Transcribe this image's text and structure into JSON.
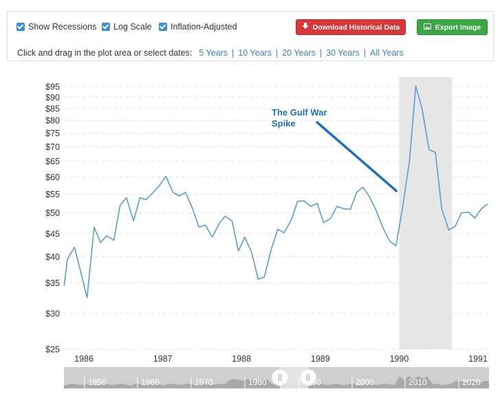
{
  "toolbar": {
    "checkboxes": [
      {
        "label": "Show Recessions",
        "checked": true
      },
      {
        "label": "Log Scale",
        "checked": true
      },
      {
        "label": "Inflation-Adjusted",
        "checked": true
      }
    ],
    "download_label": "Download Historical Data",
    "export_label": "Export Image",
    "zoom_prompt": "Click and drag in the plot area or select dates:",
    "zoom_options": [
      "5 Years",
      "10 Years",
      "20 Years",
      "30 Years",
      "All Years"
    ]
  },
  "colors": {
    "line": "#5b9bd5",
    "recession": "#e6e6e6",
    "annotation": "#1f6fbf",
    "download": "#d9383a",
    "export": "#3aa845",
    "accent": "#3e8ed0"
  },
  "chart_data": {
    "type": "line",
    "log_scale": true,
    "grid": true,
    "y_ticks": [
      25,
      30,
      35,
      40,
      45,
      50,
      55,
      60,
      65,
      70,
      75,
      80,
      85,
      90,
      95
    ],
    "y_tick_labels": [
      "$25",
      "$30",
      "$35",
      "$40",
      "$45",
      "$50",
      "$55",
      "$60",
      "$65",
      "$70",
      "$75",
      "$80",
      "$85",
      "$90",
      "$95"
    ],
    "x_ticks": [
      1986,
      1987,
      1988,
      1989,
      1990,
      1991
    ],
    "x_tick_labels": [
      "1986",
      "1987",
      "1988",
      "1989",
      "1990",
      "1991"
    ],
    "xlim": [
      1985.75,
      1991.12
    ],
    "ylim": [
      25,
      100
    ],
    "recession": {
      "start": 1990.0,
      "end": 1990.67
    },
    "annotation": {
      "lines": [
        "The Gulf War",
        "Spike"
      ],
      "target_x": 1990.0,
      "target_y": 56.5
    },
    "series": [
      {
        "x": [
          1985.75,
          1985.79,
          1985.88,
          1985.96,
          1986.04,
          1986.13,
          1986.21,
          1986.29,
          1986.38,
          1986.46,
          1986.54,
          1986.63,
          1986.71,
          1986.79,
          1986.88,
          1986.96,
          1987.04,
          1987.13,
          1987.21,
          1987.29,
          1987.38,
          1987.46,
          1987.54,
          1987.63,
          1987.71,
          1987.79,
          1987.88,
          1987.96,
          1988.04,
          1988.13,
          1988.21,
          1988.29,
          1988.38,
          1988.46,
          1988.54,
          1988.63,
          1988.71,
          1988.79,
          1988.88,
          1988.96,
          1989.04,
          1989.13,
          1989.21,
          1989.29,
          1989.38,
          1989.46,
          1989.54,
          1989.63,
          1989.71,
          1989.79,
          1989.88,
          1989.96,
          1990.04,
          1990.13,
          1990.21,
          1990.29,
          1990.38,
          1990.46,
          1990.54,
          1990.63,
          1990.71,
          1990.79,
          1990.88,
          1990.96,
          1991.04,
          1991.12
        ],
        "values": [
          34.5,
          39.5,
          42.0,
          37.0,
          32.5,
          46.5,
          43.0,
          44.5,
          43.5,
          52.0,
          54.0,
          48.0,
          54.0,
          53.5,
          55.5,
          57.5,
          60.2,
          55.5,
          54.5,
          55.5,
          51.0,
          46.5,
          47.0,
          44.2,
          47.2,
          49.2,
          48.0,
          41.2,
          44.2,
          40.8,
          35.7,
          36.1,
          41.7,
          46.0,
          45.2,
          48.2,
          53.0,
          53.2,
          51.7,
          52.5,
          47.6,
          48.6,
          51.7,
          51.1,
          50.9,
          55.5,
          57.0,
          54.0,
          50.5,
          46.5,
          43.3,
          42.3,
          51.0,
          65.0,
          95.3,
          85.0,
          69.0,
          68.0,
          51.0,
          45.8,
          46.7,
          50.0,
          50.2,
          48.7,
          51.0,
          52.3
        ]
      }
    ]
  },
  "navigator": {
    "labels": [
      "1950",
      "1960",
      "1970",
      "1980",
      "1990",
      "2000",
      "2010",
      "2020"
    ]
  }
}
